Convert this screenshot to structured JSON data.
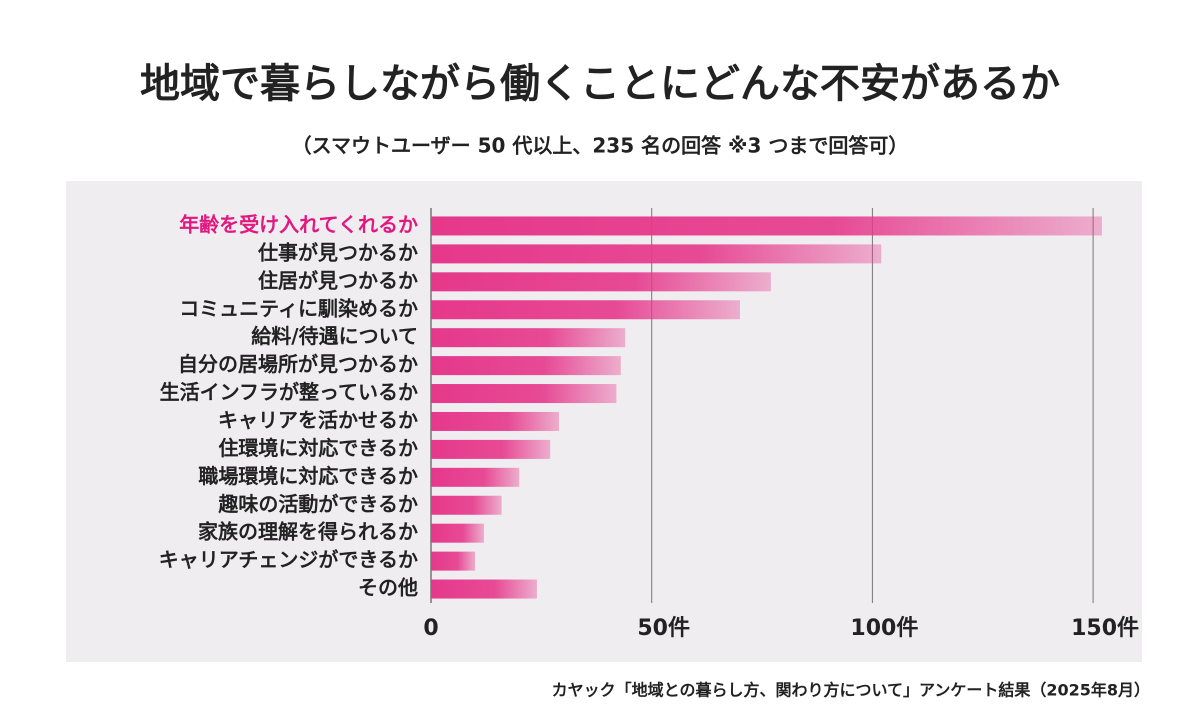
{
  "chart_data": {
    "type": "barh",
    "title": "地域で暮らしながら働くことにどんな不安があるか",
    "subtitle": "（スマウトユーザー 50 代以上、235 名の回答 ※3 つまで回答可）",
    "source": "カヤック「地域との暮らし方、関わり方について」アンケート結果（2025年8月）",
    "categories": [
      "年齢を受け入れてくれるか",
      "仕事が見つかるか",
      "住居が見つかるか",
      "コミュニティに馴染めるか",
      "給料/待遇について",
      "自分の居場所が見つかるか",
      "生活インフラが整っているか",
      "キャリアを活かせるか",
      "住環境に対応できるか",
      "職場環境に対応できるか",
      "趣味の活動ができるか",
      "家族の理解を得られるか",
      "キャリアチェンジができるか",
      "その他"
    ],
    "values": [
      152,
      102,
      77,
      70,
      44,
      43,
      42,
      29,
      27,
      20,
      16,
      12,
      10,
      24
    ],
    "color": "#e6388b",
    "highlight": {
      "index": 0,
      "color": "#e0187f"
    },
    "xlim": [
      0,
      157
    ],
    "xticks": [
      0,
      {
        "value": 50,
        "label": "50件"
      },
      {
        "value": 100,
        "label": "100件"
      },
      {
        "value": 150,
        "label": "150件"
      }
    ],
    "grid": true
  }
}
